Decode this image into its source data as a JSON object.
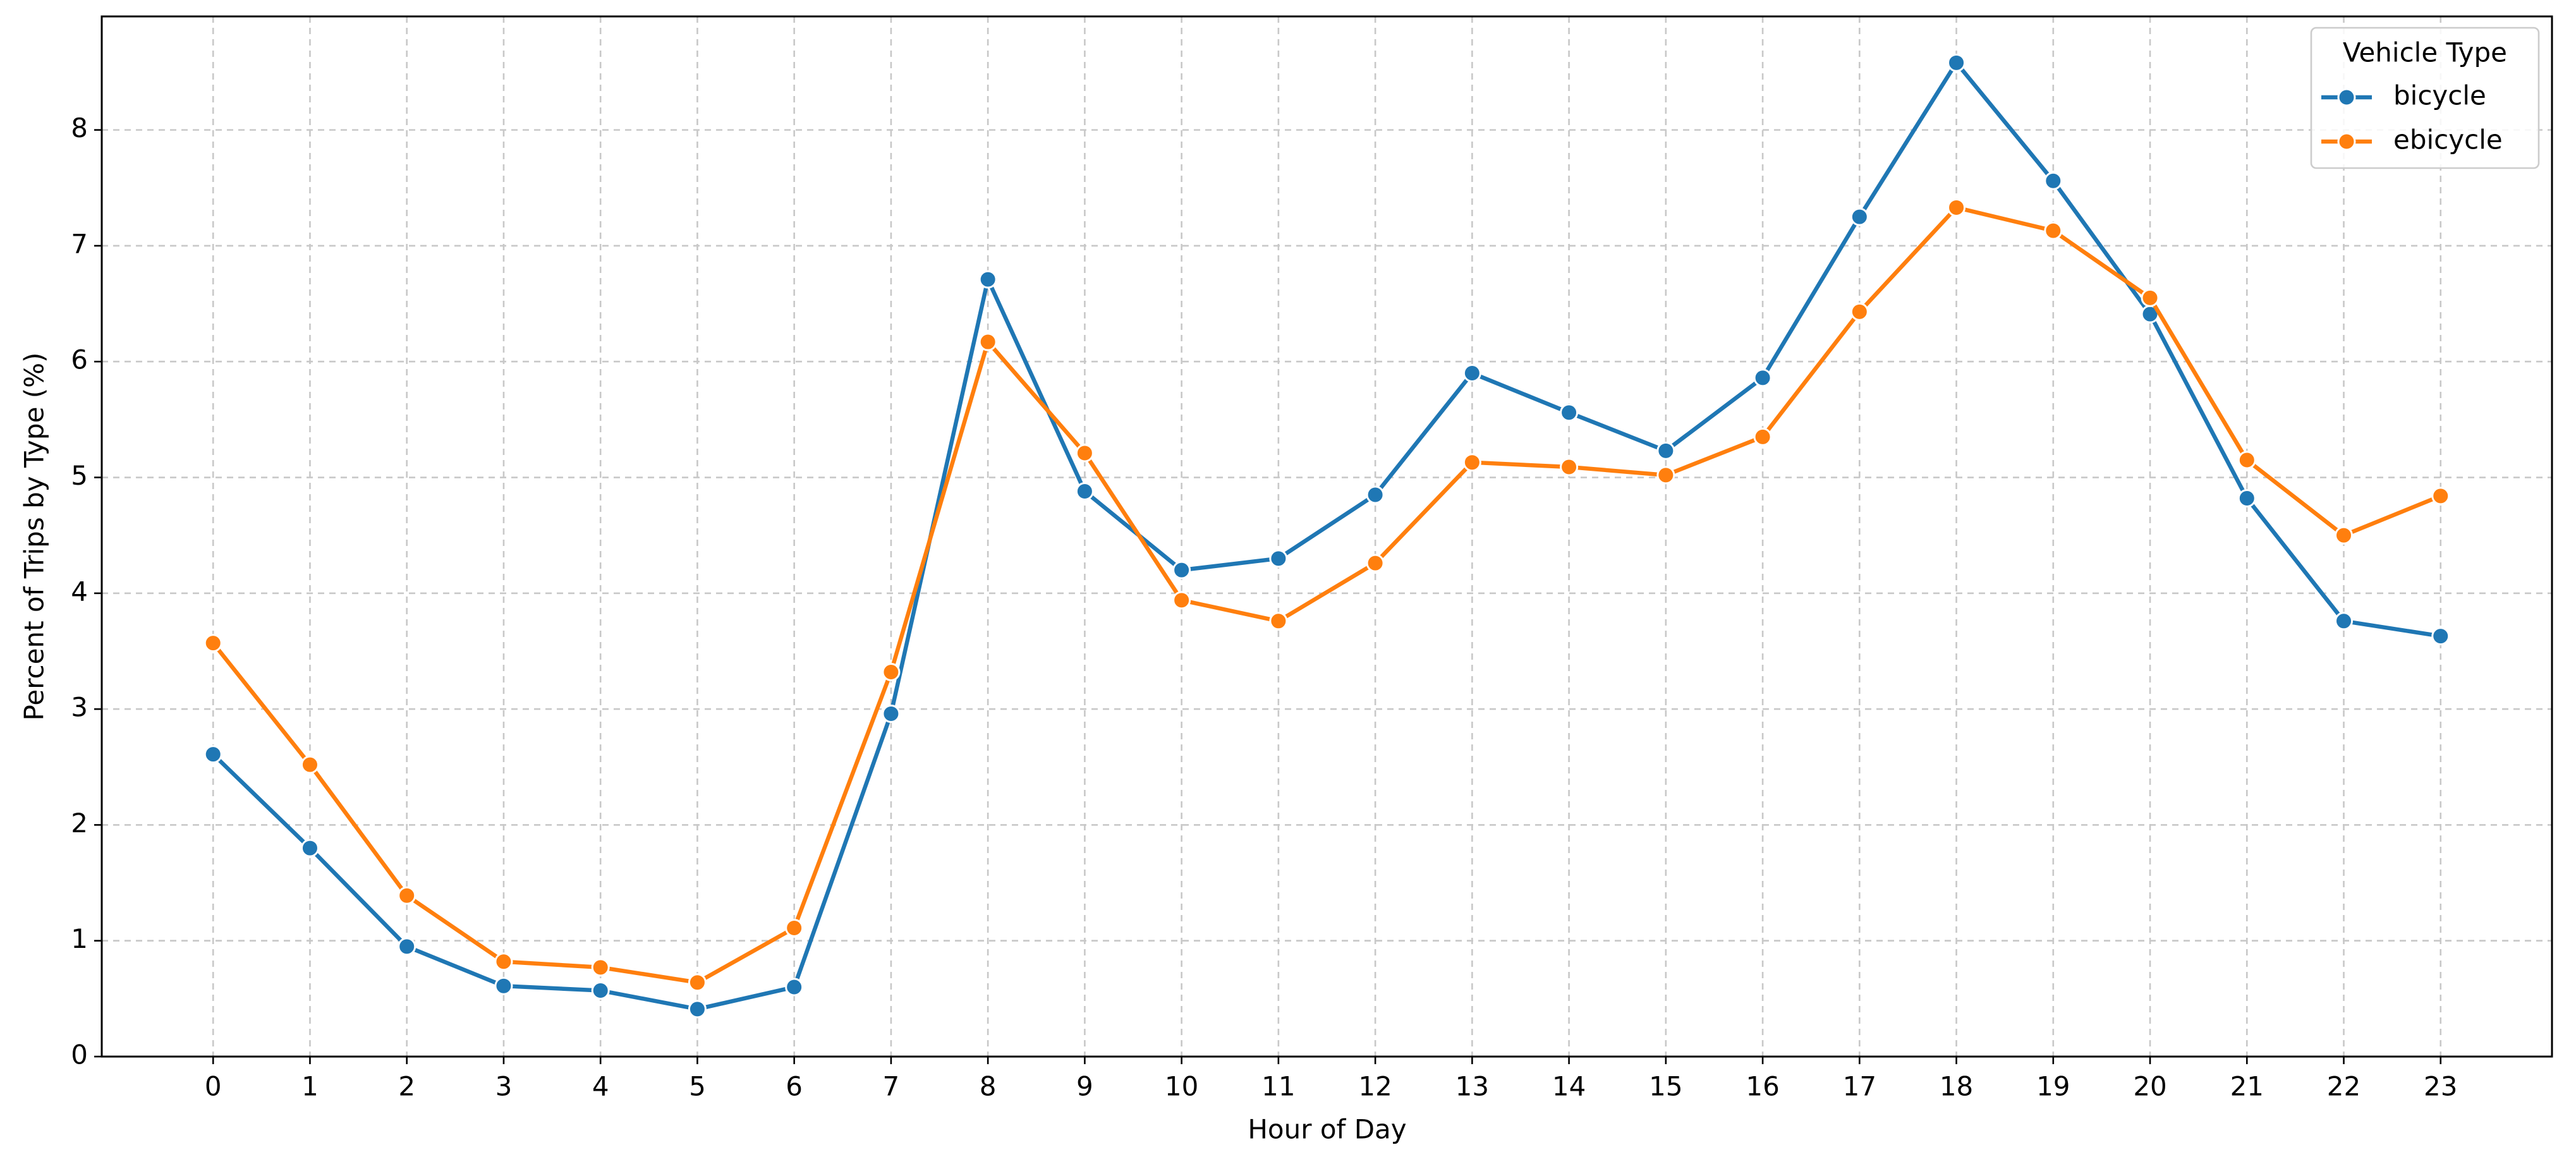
{
  "chart_data": {
    "type": "line",
    "xlabel": "Hour of Day",
    "ylabel": "Percent of Trips by Type (%)",
    "x": [
      0,
      1,
      2,
      3,
      4,
      5,
      6,
      7,
      8,
      9,
      10,
      11,
      12,
      13,
      14,
      15,
      16,
      17,
      18,
      19,
      20,
      21,
      22,
      23
    ],
    "series": [
      {
        "name": "bicycle",
        "color": "#1f77b4",
        "values": [
          2.61,
          1.8,
          0.95,
          0.61,
          0.57,
          0.41,
          0.6,
          2.96,
          6.71,
          4.88,
          4.2,
          4.3,
          4.85,
          5.9,
          5.56,
          5.23,
          5.86,
          7.25,
          8.58,
          7.56,
          6.41,
          4.82,
          3.76,
          3.63
        ]
      },
      {
        "name": "ebicycle",
        "color": "#ff7f0e",
        "values": [
          3.57,
          2.52,
          1.39,
          0.82,
          0.77,
          0.64,
          1.11,
          3.32,
          6.17,
          5.21,
          3.94,
          3.76,
          4.26,
          5.13,
          5.09,
          5.02,
          5.35,
          6.43,
          7.33,
          7.13,
          6.55,
          5.15,
          4.5,
          4.84
        ]
      }
    ],
    "xlim": [
      -1.15,
      24.15
    ],
    "xticks": [
      0,
      1,
      2,
      3,
      4,
      5,
      6,
      7,
      8,
      9,
      10,
      11,
      12,
      13,
      14,
      15,
      16,
      17,
      18,
      19,
      20,
      21,
      22,
      23
    ],
    "ylim": [
      0,
      8.98
    ],
    "yticks": [
      0,
      1,
      2,
      3,
      4,
      5,
      6,
      7,
      8
    ],
    "grid": true,
    "legend_title": "Vehicle Type",
    "legend": "upper right"
  }
}
